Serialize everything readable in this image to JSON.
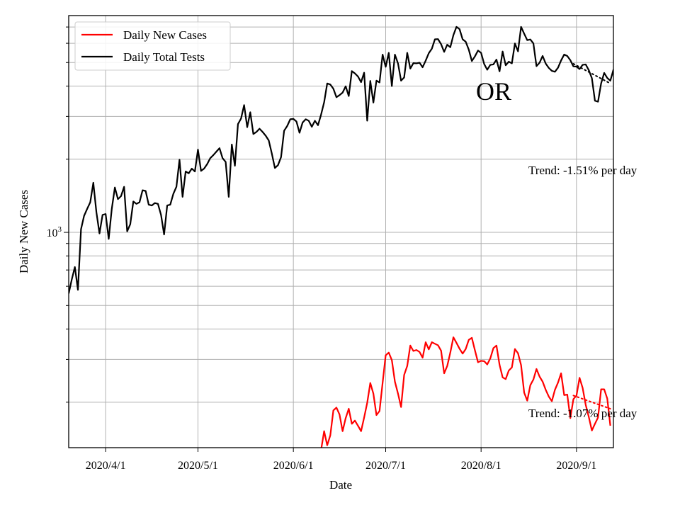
{
  "chart_data": {
    "type": "line",
    "title": "",
    "xlabel": "Date",
    "ylabel": "Daily New Cases",
    "yscale": "log",
    "ylim": [
      130,
      7800
    ],
    "xlim": [
      "2020-03-20",
      "2020-09-13"
    ],
    "grid": true,
    "legend_position": "top-left",
    "x_ticks": [
      {
        "date": "2020-04-01",
        "label": "2020/4/1"
      },
      {
        "date": "2020-05-01",
        "label": "2020/5/1"
      },
      {
        "date": "2020-06-01",
        "label": "2020/6/1"
      },
      {
        "date": "2020-07-01",
        "label": "2020/7/1"
      },
      {
        "date": "2020-08-01",
        "label": "2020/8/1"
      },
      {
        "date": "2020-09-01",
        "label": "2020/9/1"
      }
    ],
    "y_major_tick": {
      "value": 1000,
      "label_base": "10",
      "label_exp": "3"
    },
    "series": [
      {
        "name": "Daily New Cases",
        "color": "#ff0000",
        "start": "2020-06-10",
        "values": [
          127,
          152,
          133,
          146,
          185,
          190,
          178,
          152,
          172,
          188,
          163,
          168,
          160,
          152,
          173,
          199,
          240,
          217,
          177,
          184,
          240,
          312,
          320,
          298,
          243,
          217,
          191,
          259,
          282,
          342,
          325,
          328,
          322,
          305,
          353,
          330,
          353,
          348,
          343,
          326,
          263,
          282,
          320,
          370,
          351,
          332,
          317,
          331,
          361,
          368,
          327,
          292,
          296,
          295,
          286,
          303,
          334,
          342,
          285,
          253,
          249,
          270,
          278,
          331,
          318,
          284,
          219,
          203,
          235,
          248,
          274,
          255,
          243,
          225,
          211,
          202,
          225,
          241,
          263,
          214,
          215,
          172,
          206,
          213,
          252,
          229,
          195,
          174,
          153,
          163,
          173,
          226,
          226,
          207,
          160
        ]
      },
      {
        "name": "Daily Total Tests",
        "color": "#000000",
        "start": "2020-03-20",
        "values": [
          560,
          640,
          720,
          580,
          1030,
          1170,
          1250,
          1330,
          1600,
          1210,
          990,
          1180,
          1190,
          940,
          1250,
          1530,
          1370,
          1410,
          1540,
          1010,
          1080,
          1340,
          1310,
          1330,
          1490,
          1480,
          1300,
          1290,
          1320,
          1310,
          1180,
          980,
          1290,
          1300,
          1440,
          1540,
          1990,
          1400,
          1780,
          1750,
          1830,
          1780,
          2190,
          1790,
          1830,
          1910,
          2020,
          2080,
          2150,
          2220,
          2020,
          1950,
          1400,
          2300,
          1880,
          2790,
          2940,
          3340,
          2710,
          3120,
          2540,
          2590,
          2670,
          2590,
          2500,
          2390,
          2110,
          1840,
          1890,
          2040,
          2620,
          2740,
          2920,
          2930,
          2860,
          2570,
          2830,
          2920,
          2880,
          2720,
          2880,
          2760,
          3050,
          3430,
          4100,
          4060,
          3900,
          3600,
          3670,
          3760,
          3990,
          3640,
          4610,
          4510,
          4380,
          4150,
          4540,
          2880,
          4200,
          3420,
          4210,
          4140,
          5390,
          4800,
          5480,
          4000,
          5390,
          4960,
          4210,
          4340,
          5480,
          4720,
          4970,
          4960,
          4990,
          4780,
          5090,
          5460,
          5700,
          6230,
          6240,
          5950,
          5530,
          5920,
          5780,
          6480,
          7010,
          6860,
          6230,
          6090,
          5650,
          5070,
          5300,
          5600,
          5480,
          4930,
          4670,
          4890,
          4910,
          5140,
          4600,
          5550,
          4870,
          5040,
          4960,
          5990,
          5560,
          7010,
          6570,
          6180,
          6220,
          5990,
          4830,
          4990,
          5320,
          4950,
          4750,
          4620,
          4580,
          4760,
          5100,
          5390,
          5320,
          5110,
          4820,
          4810,
          4700,
          4890,
          4910,
          4650,
          4310,
          3480,
          3450,
          4100,
          4530,
          4320,
          4210,
          4670,
          2980
        ],
        "trend": {
          "start": "2020-08-31",
          "end": "2020-09-12",
          "from": 4940,
          "to": 4100
        }
      }
    ],
    "new_cases_trend": {
      "start": "2020-08-31",
      "end": "2020-09-12",
      "from": 213,
      "to": 188
    },
    "annotations": {
      "state": "OR",
      "tests_trend": "Trend: -1.51% per day",
      "cases_trend": "Trend: -1.07% per day"
    }
  }
}
